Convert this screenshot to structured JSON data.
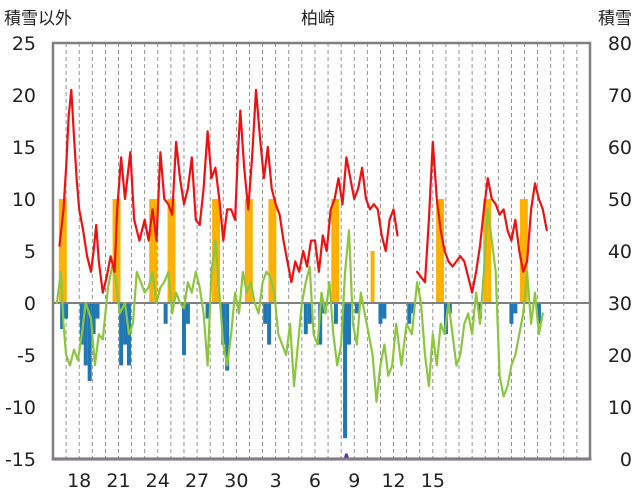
{
  "chart_data": {
    "type": "line",
    "title": "柏崎",
    "left_axis_label": "積雪以外",
    "right_axis_label": "積雪",
    "ylim_left": [
      -15,
      25
    ],
    "ylim_right": [
      0,
      80
    ],
    "yticks_left": [
      25,
      20,
      15,
      10,
      5,
      0,
      -5,
      -10,
      -15
    ],
    "yticks_right": [
      80,
      70,
      60,
      50,
      40,
      30,
      20,
      10,
      0
    ],
    "xlim": [
      0,
      41
    ],
    "x_tick_positions": [
      2,
      5,
      8,
      11,
      14,
      17,
      20,
      23,
      26,
      29,
      32,
      35,
      38
    ],
    "xticks": [
      "18",
      "21",
      "24",
      "27",
      "30",
      "3",
      "6",
      "9",
      "12",
      "15"
    ],
    "xtick_values": [
      2,
      5,
      8,
      11,
      14,
      17,
      20,
      23,
      26,
      29
    ],
    "colors": {
      "red_line": "#ee1111",
      "green_line": "#8cc63f",
      "orange_bars": "#ffb000",
      "blue_bars": "#1f78b4",
      "purple_line": "#7030a0",
      "zero_line": "#808080",
      "frame": "#808080"
    },
    "series": [
      {
        "type": "line",
        "color_key": "red_line",
        "points": [
          [
            0.5,
            5.5
          ],
          [
            0.8,
            9
          ],
          [
            1.0,
            13
          ],
          [
            1.2,
            18
          ],
          [
            1.4,
            20.5
          ],
          [
            1.6,
            16
          ],
          [
            1.8,
            12
          ],
          [
            2.0,
            9
          ],
          [
            2.3,
            7
          ],
          [
            2.6,
            4.5
          ],
          [
            2.9,
            3
          ],
          [
            3.1,
            5
          ],
          [
            3.3,
            7.5
          ],
          [
            3.5,
            4
          ],
          [
            3.8,
            1
          ],
          [
            4.1,
            2.5
          ],
          [
            4.4,
            4.5
          ],
          [
            4.7,
            3
          ],
          [
            4.9,
            9
          ],
          [
            5.2,
            14
          ],
          [
            5.5,
            10
          ],
          [
            5.9,
            14.5
          ],
          [
            6.2,
            8
          ],
          [
            6.6,
            6
          ],
          [
            7.0,
            8
          ],
          [
            7.3,
            6
          ],
          [
            7.6,
            9
          ],
          [
            7.9,
            6
          ],
          [
            8.2,
            14.5
          ],
          [
            8.5,
            10
          ],
          [
            8.8,
            9.5
          ],
          [
            9.1,
            8.5
          ],
          [
            9.4,
            15.5
          ],
          [
            9.7,
            12
          ],
          [
            10.0,
            9.5
          ],
          [
            10.3,
            11
          ],
          [
            10.6,
            14
          ],
          [
            10.9,
            8
          ],
          [
            11.2,
            7.5
          ],
          [
            11.5,
            11
          ],
          [
            11.8,
            16.5
          ],
          [
            12.1,
            12
          ],
          [
            12.4,
            13
          ],
          [
            12.7,
            10
          ],
          [
            13.0,
            6
          ],
          [
            13.3,
            9
          ],
          [
            13.6,
            9
          ],
          [
            13.9,
            8
          ],
          [
            14.1,
            14
          ],
          [
            14.3,
            18.5
          ],
          [
            14.6,
            13
          ],
          [
            14.9,
            9
          ],
          [
            15.2,
            14
          ],
          [
            15.5,
            20.5
          ],
          [
            15.8,
            16
          ],
          [
            16.1,
            12
          ],
          [
            16.4,
            15
          ],
          [
            16.7,
            11
          ],
          [
            17.0,
            9.5
          ],
          [
            17.3,
            8.5
          ],
          [
            17.6,
            6
          ],
          [
            17.9,
            4
          ],
          [
            18.2,
            2
          ],
          [
            18.5,
            4
          ],
          [
            18.8,
            3
          ],
          [
            19.1,
            5
          ],
          [
            19.4,
            3.5
          ],
          [
            19.7,
            6
          ],
          [
            20.0,
            6
          ],
          [
            20.3,
            3
          ],
          [
            20.6,
            6.5
          ],
          [
            20.9,
            5
          ],
          [
            21.2,
            9
          ],
          [
            21.5,
            10
          ],
          [
            21.8,
            12
          ],
          [
            22.1,
            9.5
          ],
          [
            22.4,
            14
          ],
          [
            22.7,
            12
          ],
          [
            23.0,
            10
          ],
          [
            23.3,
            11
          ],
          [
            23.6,
            13
          ],
          [
            23.9,
            10
          ],
          [
            24.2,
            9
          ],
          [
            24.5,
            9.5
          ],
          [
            24.8,
            9
          ],
          [
            25.1,
            6.5
          ],
          [
            25.4,
            5
          ],
          [
            25.7,
            8
          ],
          [
            26.0,
            9
          ],
          [
            26.3,
            6.5
          ]
        ]
      },
      {
        "type": "line",
        "color_key": "red_line",
        "points": [
          [
            27.8,
            3
          ],
          [
            28.1,
            2.5
          ],
          [
            28.4,
            2
          ],
          [
            28.7,
            8
          ],
          [
            29.0,
            15.5
          ],
          [
            29.3,
            10
          ],
          [
            29.6,
            7
          ],
          [
            29.9,
            5
          ],
          [
            30.2,
            4
          ],
          [
            30.5,
            3.5
          ],
          [
            30.8,
            4
          ],
          [
            31.1,
            4.5
          ],
          [
            31.4,
            4
          ],
          [
            31.7,
            2.5
          ],
          [
            32.0,
            1
          ],
          [
            32.3,
            3
          ],
          [
            32.6,
            5.5
          ],
          [
            32.9,
            9
          ],
          [
            33.2,
            12
          ],
          [
            33.5,
            10
          ],
          [
            33.8,
            9.5
          ],
          [
            34.1,
            8.5
          ],
          [
            34.4,
            9
          ],
          [
            34.7,
            7
          ],
          [
            35.0,
            6
          ],
          [
            35.3,
            8
          ],
          [
            35.6,
            5
          ],
          [
            35.9,
            3
          ],
          [
            36.2,
            4
          ],
          [
            36.5,
            9
          ],
          [
            36.8,
            11.5
          ],
          [
            37.1,
            10
          ],
          [
            37.4,
            9
          ],
          [
            37.7,
            7
          ]
        ]
      },
      {
        "type": "line",
        "color_key": "green_line",
        "points": [
          [
            0.3,
            0
          ],
          [
            0.6,
            3
          ],
          [
            0.8,
            -2
          ],
          [
            1.0,
            -5
          ],
          [
            1.3,
            -6
          ],
          [
            1.6,
            -4.5
          ],
          [
            1.9,
            -5.5
          ],
          [
            2.2,
            -3
          ],
          [
            2.5,
            0
          ],
          [
            2.9,
            -1.5
          ],
          [
            3.2,
            -6
          ],
          [
            3.5,
            -3
          ],
          [
            3.8,
            -3.5
          ],
          [
            4.2,
            1.5
          ],
          [
            4.6,
            4
          ],
          [
            5.1,
            -1
          ],
          [
            5.5,
            0
          ],
          [
            5.8,
            -3
          ],
          [
            6.1,
            -2
          ],
          [
            6.4,
            3
          ],
          [
            6.7,
            2
          ],
          [
            7.0,
            1
          ],
          [
            7.3,
            1.5
          ],
          [
            7.6,
            3
          ],
          [
            7.9,
            0
          ],
          [
            8.2,
            1.5
          ],
          [
            8.5,
            2
          ],
          [
            8.8,
            3
          ],
          [
            9.1,
            -1
          ],
          [
            9.4,
            1
          ],
          [
            9.7,
            0
          ],
          [
            10.0,
            -0.5
          ],
          [
            10.3,
            2
          ],
          [
            10.6,
            1
          ],
          [
            10.9,
            3
          ],
          [
            11.2,
            1.5
          ],
          [
            11.5,
            -1
          ],
          [
            11.8,
            -6
          ],
          [
            12.1,
            3
          ],
          [
            12.4,
            6
          ],
          [
            12.7,
            1
          ],
          [
            13.0,
            -4
          ],
          [
            13.3,
            -6
          ],
          [
            13.6,
            -3
          ],
          [
            13.9,
            1
          ],
          [
            14.2,
            -1
          ],
          [
            14.5,
            3
          ],
          [
            14.8,
            1
          ],
          [
            15.1,
            2
          ],
          [
            15.4,
            0
          ],
          [
            15.7,
            -1
          ],
          [
            16.0,
            2
          ],
          [
            16.3,
            3
          ],
          [
            16.6,
            2.5
          ],
          [
            16.9,
            1
          ],
          [
            17.2,
            -3
          ],
          [
            17.5,
            -4
          ],
          [
            17.8,
            -5
          ],
          [
            18.1,
            -2
          ],
          [
            18.4,
            -8
          ],
          [
            18.7,
            -4
          ],
          [
            19.0,
            0
          ],
          [
            19.3,
            2
          ],
          [
            19.6,
            3.5
          ],
          [
            19.9,
            -3
          ],
          [
            20.2,
            -4
          ],
          [
            20.5,
            1
          ],
          [
            20.8,
            -1
          ],
          [
            21.1,
            2
          ],
          [
            21.4,
            -3
          ],
          [
            21.7,
            -6
          ],
          [
            22.0,
            -4
          ],
          [
            22.3,
            3
          ],
          [
            22.6,
            7
          ],
          [
            22.9,
            -2
          ],
          [
            23.2,
            -4
          ],
          [
            23.5,
            1
          ],
          [
            23.8,
            -1
          ],
          [
            24.1,
            -3
          ],
          [
            24.4,
            -5
          ],
          [
            24.7,
            -9.5
          ],
          [
            25.0,
            -6
          ],
          [
            25.3,
            -4
          ],
          [
            25.6,
            -7
          ],
          [
            25.9,
            -6
          ],
          [
            26.2,
            -2
          ],
          [
            26.6,
            -6
          ],
          [
            27.0,
            -2
          ],
          [
            27.4,
            -3
          ],
          [
            27.8,
            2
          ],
          [
            28.1,
            0
          ],
          [
            28.4,
            -5
          ],
          [
            28.7,
            -8
          ],
          [
            29.0,
            -3
          ],
          [
            29.3,
            -6
          ],
          [
            29.6,
            -2
          ],
          [
            29.9,
            -3
          ],
          [
            30.2,
            0
          ],
          [
            30.5,
            -3
          ],
          [
            30.8,
            -6
          ],
          [
            31.1,
            -5
          ],
          [
            31.4,
            -2
          ],
          [
            31.7,
            -1
          ],
          [
            32.0,
            -3
          ],
          [
            32.3,
            1
          ],
          [
            32.6,
            -2
          ],
          [
            32.9,
            3
          ],
          [
            33.2,
            9
          ],
          [
            33.5,
            6
          ],
          [
            33.8,
            3
          ],
          [
            34.1,
            -7
          ],
          [
            34.4,
            -9
          ],
          [
            34.7,
            -8
          ],
          [
            35.0,
            -6
          ],
          [
            35.3,
            -5
          ],
          [
            35.6,
            -3
          ],
          [
            35.9,
            -1
          ],
          [
            36.2,
            3
          ],
          [
            36.5,
            -2
          ],
          [
            36.8,
            1
          ],
          [
            37.1,
            -3
          ],
          [
            37.4,
            -1
          ]
        ]
      },
      {
        "type": "bars",
        "color_key": "orange_bars",
        "bars": [
          [
            0.6,
            10
          ],
          [
            0.9,
            10
          ],
          [
            4.7,
            10
          ],
          [
            5.0,
            10
          ],
          [
            7.5,
            10
          ],
          [
            7.8,
            10
          ],
          [
            8.9,
            10
          ],
          [
            9.2,
            10
          ],
          [
            12.3,
            10
          ],
          [
            12.6,
            10
          ],
          [
            14.8,
            10
          ],
          [
            15.1,
            10
          ],
          [
            16.6,
            10
          ],
          [
            16.9,
            10
          ],
          [
            21.4,
            10
          ],
          [
            21.7,
            10
          ],
          [
            24.4,
            5
          ],
          [
            29.4,
            10
          ],
          [
            29.7,
            10
          ],
          [
            33.0,
            10
          ],
          [
            33.3,
            10
          ],
          [
            35.8,
            10
          ],
          [
            36.1,
            10
          ]
        ]
      },
      {
        "type": "bars",
        "color_key": "blue_bars",
        "bars": [
          [
            0.7,
            -2.5
          ],
          [
            1.0,
            -1.5
          ],
          [
            2.2,
            -4
          ],
          [
            2.5,
            -6
          ],
          [
            2.8,
            -7.5
          ],
          [
            3.1,
            -3
          ],
          [
            3.4,
            -1.5
          ],
          [
            5.2,
            -6
          ],
          [
            5.5,
            -4
          ],
          [
            5.8,
            -6
          ],
          [
            8.6,
            -2
          ],
          [
            10.0,
            -5
          ],
          [
            10.3,
            -2
          ],
          [
            11.8,
            -1.5
          ],
          [
            13.0,
            -4
          ],
          [
            13.3,
            -6.5
          ],
          [
            16.2,
            -2
          ],
          [
            16.5,
            -4
          ],
          [
            19.3,
            -3
          ],
          [
            19.6,
            -2
          ],
          [
            20.4,
            -4
          ],
          [
            20.7,
            -1
          ],
          [
            21.6,
            -2
          ],
          [
            22.3,
            -13
          ],
          [
            22.6,
            -4
          ],
          [
            23.2,
            -1
          ],
          [
            25.0,
            -2
          ],
          [
            25.3,
            -1.5
          ],
          [
            27.2,
            -2
          ],
          [
            27.5,
            -1
          ],
          [
            30.0,
            -3
          ],
          [
            30.3,
            -1
          ],
          [
            32.6,
            -1.5
          ],
          [
            35.0,
            -2
          ],
          [
            35.3,
            -1
          ],
          [
            37.1,
            -2
          ]
        ]
      },
      {
        "type": "line",
        "color_key": "purple_line",
        "axis": "right",
        "points": [
          [
            0,
            0
          ],
          [
            22.3,
            0
          ],
          [
            22.4,
            0.8
          ],
          [
            22.5,
            0
          ],
          [
            41,
            0
          ]
        ]
      }
    ]
  }
}
